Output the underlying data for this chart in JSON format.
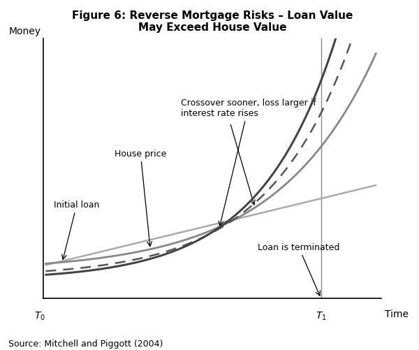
{
  "title": "Figure 6: Reverse Mortgage Risks – Loan Value\nMay Exceed House Value",
  "xlabel": "Time",
  "ylabel": "Money",
  "source": "Source: Mitchell and Piggott (2004)",
  "background_color": "#ffffff",
  "annotation_initial_loan": "Initial loan",
  "annotation_house_price": "House price",
  "annotation_crossover": "Crossover sooner, loss larger if\ninterest rate rises",
  "annotation_terminated": "Loan is terminated",
  "figsize": [
    6.0,
    5.02
  ],
  "dpi": 100
}
